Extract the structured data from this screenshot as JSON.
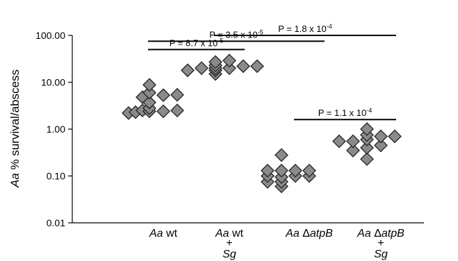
{
  "chart_data": {
    "type": "scatter",
    "yscale": "log",
    "ylim": [
      0.01,
      100
    ],
    "ylabel_italic": "Aa",
    "ylabel_rest": " % survival/abscess",
    "yticks": [
      "0.01",
      "0.10",
      "1.00",
      "10.00",
      "100.00"
    ],
    "categories": [
      {
        "italic1": "Aa",
        "rest1": " wt",
        "line2": "",
        "plus": false
      },
      {
        "italic1": "Aa",
        "rest1": " wt",
        "line2": "Sg",
        "plus": true
      },
      {
        "italic1": "Aa",
        "rest1": " Δ",
        "italic2": "atpB",
        "line2": "",
        "plus": false
      },
      {
        "italic1": "Aa",
        "rest1": " Δ",
        "italic2": "atpB",
        "line2": "Sg",
        "plus": true
      }
    ],
    "series": [
      {
        "category_index": 0,
        "points": [
          {
            "o": -5,
            "v": 2.2
          },
          {
            "o": -4,
            "v": 2.3
          },
          {
            "o": -3,
            "v": 2.5
          },
          {
            "o": -3,
            "v": 4.8
          },
          {
            "o": -2,
            "v": 2.4
          },
          {
            "o": -2,
            "v": 2.8
          },
          {
            "o": -2,
            "v": 3.7
          },
          {
            "o": -2,
            "v": 6.0
          },
          {
            "o": -2,
            "v": 8.8
          },
          {
            "o": 0,
            "v": 2.4
          },
          {
            "o": 0,
            "v": 5.3
          },
          {
            "o": 2,
            "v": 2.5
          },
          {
            "o": 2,
            "v": 5.4
          }
        ]
      },
      {
        "category_index": 1,
        "points": [
          {
            "o": -6,
            "v": 18
          },
          {
            "o": -4,
            "v": 20
          },
          {
            "o": -2,
            "v": 15
          },
          {
            "o": -2,
            "v": 18
          },
          {
            "o": -2,
            "v": 20
          },
          {
            "o": -2,
            "v": 23
          },
          {
            "o": -2,
            "v": 27
          },
          {
            "o": 0,
            "v": 20
          },
          {
            "o": 0,
            "v": 29
          },
          {
            "o": 2,
            "v": 22
          },
          {
            "o": 4,
            "v": 22
          }
        ]
      },
      {
        "category_index": 2,
        "points": [
          {
            "o": -6,
            "v": 0.075
          },
          {
            "o": -6,
            "v": 0.1
          },
          {
            "o": -6,
            "v": 0.13
          },
          {
            "o": -4,
            "v": 0.06
          },
          {
            "o": -4,
            "v": 0.075
          },
          {
            "o": -4,
            "v": 0.095
          },
          {
            "o": -4,
            "v": 0.13
          },
          {
            "o": -4,
            "v": 0.28
          },
          {
            "o": -2,
            "v": 0.1
          },
          {
            "o": -2,
            "v": 0.13
          },
          {
            "o": 0,
            "v": 0.1
          },
          {
            "o": 0,
            "v": 0.13
          }
        ]
      },
      {
        "category_index": 3,
        "points": [
          {
            "o": -6,
            "v": 0.55
          },
          {
            "o": -4,
            "v": 0.35
          },
          {
            "o": -4,
            "v": 0.55
          },
          {
            "o": -2,
            "v": 0.23
          },
          {
            "o": -2,
            "v": 0.4
          },
          {
            "o": -2,
            "v": 0.6
          },
          {
            "o": -2,
            "v": 0.75
          },
          {
            "o": -2,
            "v": 1.0
          },
          {
            "o": 0,
            "v": 0.45
          },
          {
            "o": 0,
            "v": 0.7
          },
          {
            "o": 2,
            "v": 0.7
          }
        ]
      }
    ],
    "annotations": [
      {
        "from": 0,
        "to": 1,
        "level": 50,
        "label": "P = 8.7 x 10",
        "exp": "-5"
      },
      {
        "from": 0,
        "to": 2,
        "level": 75,
        "label": "P = 3.5 x 10",
        "exp": "-5"
      },
      {
        "from": 1,
        "to": 3,
        "level": 100,
        "label": "P = 1.8 x 10",
        "exp": "-4"
      },
      {
        "from": 2,
        "to": 3,
        "level": 1.6,
        "label": "P = 1.1 x 10",
        "exp": "-4"
      }
    ]
  }
}
